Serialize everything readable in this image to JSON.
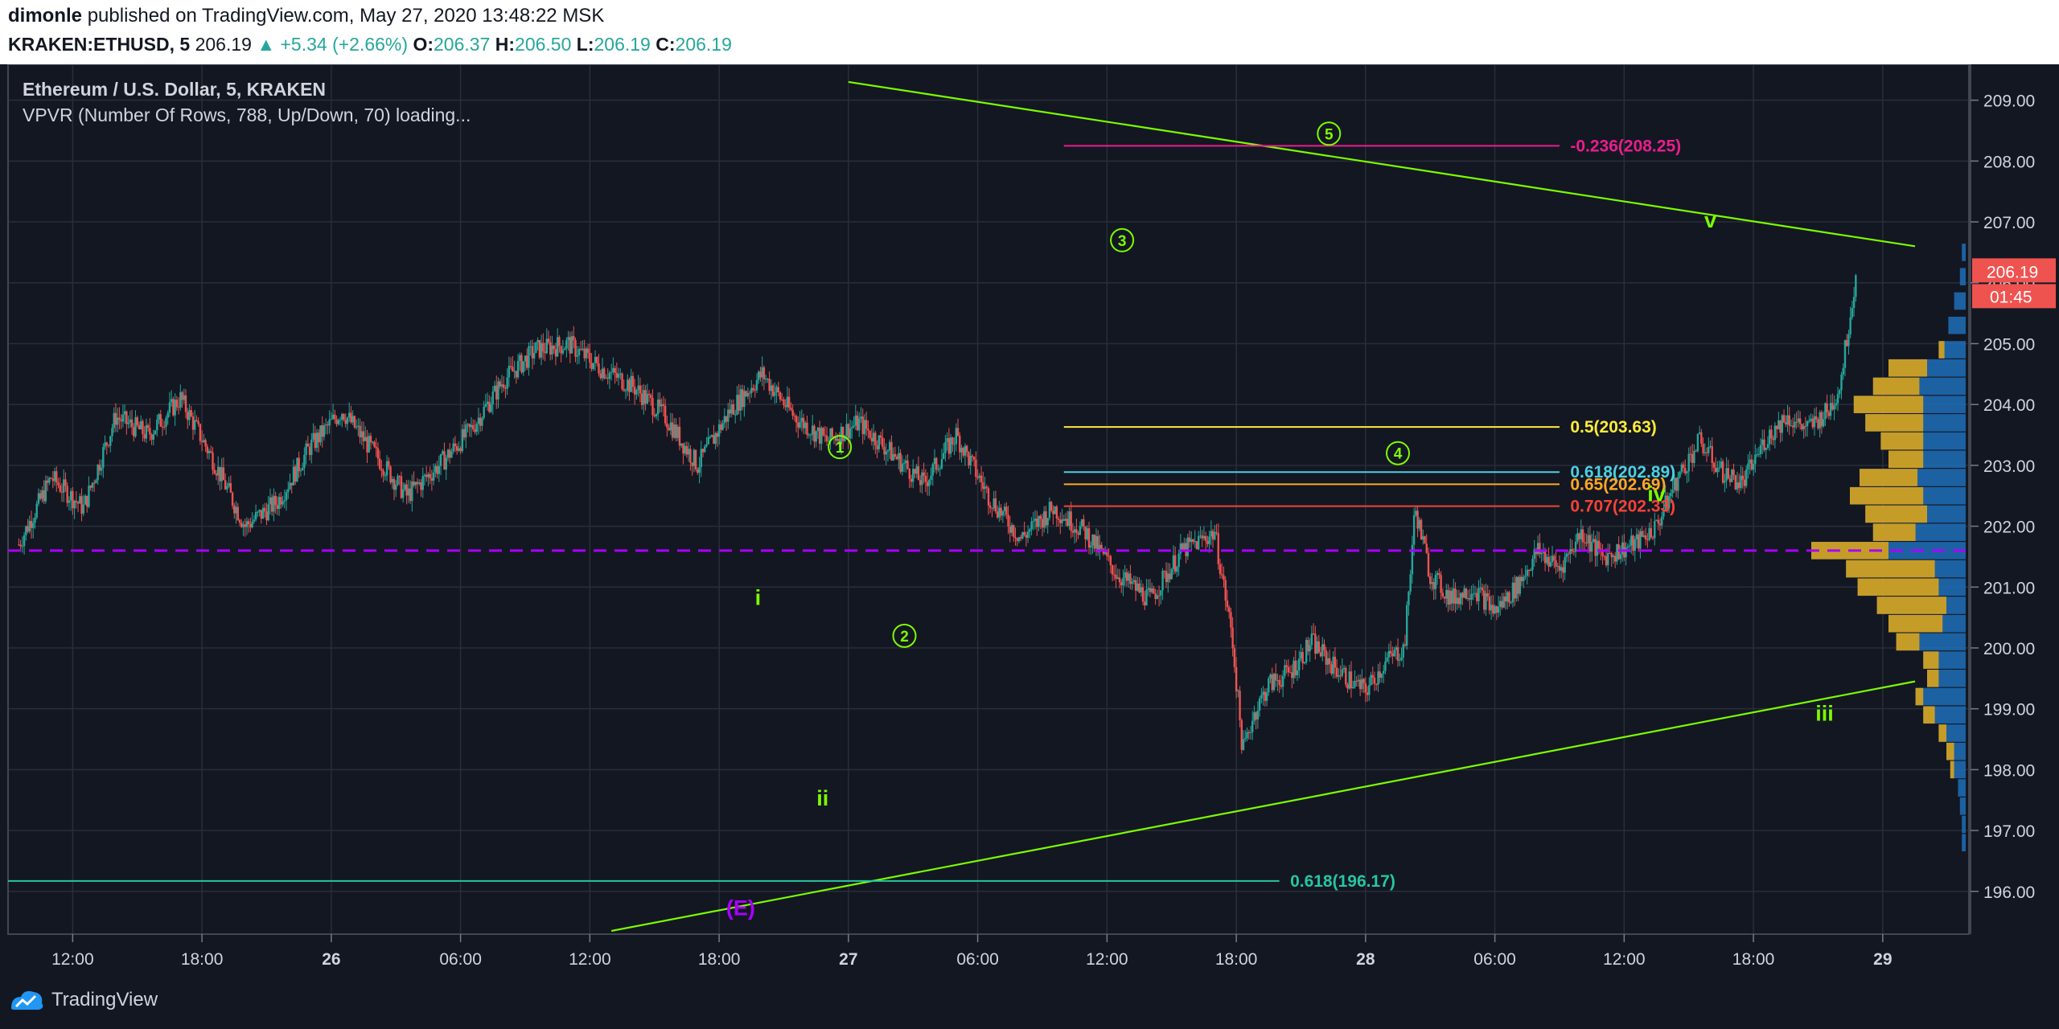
{
  "header": {
    "publisher": "dimonle",
    "published_text": "published on TradingView.com, May 27, 2020 13:48:22 MSK",
    "symbol": "KRAKEN:ETHUSD, 5",
    "last": "206.19",
    "change": "▲ +5.34 (+2.66%)",
    "o_label": "O:",
    "o": "206.37",
    "h_label": "H:",
    "h": "206.50",
    "l_label": "L:",
    "l": "206.19",
    "c_label": "C:",
    "c": "206.19"
  },
  "legend": {
    "title": "Ethereum / U.S. Dollar, 5, KRAKEN",
    "indicator": "VPVR (Number Of Rows, 788, Up/Down, 70) loading..."
  },
  "footer": {
    "brand": "TradingView"
  },
  "colors": {
    "background": "#131722",
    "grid": "#2a2e39",
    "up": "#26a69a",
    "down": "#ef5350",
    "wave": "#7cfc00",
    "purple": "#aa00ff",
    "pink": "#e91e8c",
    "yellow": "#ffeb3b",
    "cyan": "#4dd0e1",
    "orange": "#ffa726",
    "red": "#f44336",
    "teal": "#26c6a1",
    "vp_up": "#1e6fb8",
    "vp_down": "#d9a31c"
  },
  "chart_data": {
    "type": "candlestick",
    "x_ticks": [
      "12:00",
      "18:00",
      "26",
      "06:00",
      "12:00",
      "18:00",
      "27",
      "06:00",
      "12:00",
      "18:00",
      "28",
      "06:00",
      "12:00",
      "18:00",
      "29"
    ],
    "y_ticks": [
      "196.00",
      "197.00",
      "198.00",
      "199.00",
      "200.00",
      "201.00",
      "202.00",
      "203.00",
      "204.00",
      "205.00",
      "206.00",
      "207.00",
      "208.00",
      "209.00"
    ],
    "ylim": [
      195.35,
      209.55
    ],
    "xlim_hours": [
      -39,
      52
    ],
    "last_price_badge": "206.19",
    "countdown_badge": "01:45",
    "price_path": [
      [
        -38.5,
        201.7
      ],
      [
        -37,
        202.8
      ],
      [
        -35.5,
        202.3
      ],
      [
        -34,
        203.8
      ],
      [
        -32.5,
        203.5
      ],
      [
        -31,
        204.1
      ],
      [
        -29.5,
        203.1
      ],
      [
        -28,
        202.0
      ],
      [
        -26.5,
        202.4
      ],
      [
        -25,
        203.3
      ],
      [
        -23.5,
        203.9
      ],
      [
        -22,
        203.2
      ],
      [
        -20.5,
        202.5
      ],
      [
        -19,
        203.0
      ],
      [
        -17.5,
        203.6
      ],
      [
        -16,
        204.4
      ],
      [
        -14.5,
        204.9
      ],
      [
        -13,
        205.0
      ],
      [
        -11.5,
        204.6
      ],
      [
        -10,
        204.3
      ],
      [
        -8.5,
        203.8
      ],
      [
        -7,
        203.0
      ],
      [
        -5.5,
        203.9
      ],
      [
        -4,
        204.5
      ],
      [
        -2.5,
        203.8
      ],
      [
        -1,
        203.4
      ],
      [
        0.5,
        203.7
      ],
      [
        2,
        203.2
      ],
      [
        3.5,
        202.7
      ],
      [
        5,
        203.5
      ],
      [
        6.5,
        202.5
      ],
      [
        8,
        201.8
      ],
      [
        9.5,
        202.3
      ],
      [
        11,
        201.9
      ],
      [
        12.5,
        201.2
      ],
      [
        14,
        200.8
      ],
      [
        15.5,
        201.6
      ],
      [
        17,
        201.9
      ],
      [
        17.8,
        200.2
      ],
      [
        18.3,
        198.3
      ],
      [
        18.8,
        198.9
      ],
      [
        19.5,
        199.4
      ],
      [
        20.5,
        199.6
      ],
      [
        21.5,
        200.1
      ],
      [
        22.5,
        199.7
      ],
      [
        23.5,
        199.4
      ],
      [
        24,
        199.3
      ],
      [
        25,
        199.8
      ],
      [
        25.8,
        200.0
      ],
      [
        26.3,
        202.3
      ],
      [
        27,
        201.2
      ],
      [
        28,
        200.8
      ],
      [
        29,
        201.0
      ],
      [
        30,
        200.6
      ],
      [
        31,
        201.0
      ],
      [
        32,
        201.6
      ],
      [
        33,
        201.3
      ],
      [
        34,
        201.9
      ],
      [
        35,
        201.5
      ],
      [
        36.5,
        201.7
      ],
      [
        37.5,
        202.0
      ],
      [
        38.5,
        202.8
      ],
      [
        39.5,
        203.4
      ],
      [
        40.5,
        202.9
      ],
      [
        41.5,
        202.7
      ],
      [
        42.5,
        203.4
      ],
      [
        43.5,
        203.8
      ],
      [
        44.5,
        203.6
      ],
      [
        45.5,
        203.9
      ],
      [
        46,
        204.3
      ],
      [
        46.5,
        205.5
      ],
      [
        46.8,
        206.19
      ]
    ],
    "volume_profile_rows": [
      [
        206.5,
        0.02,
        0.0
      ],
      [
        206.1,
        0.03,
        0.0
      ],
      [
        205.7,
        0.06,
        0.0
      ],
      [
        205.3,
        0.09,
        0.0
      ],
      [
        204.9,
        0.14,
        0.03
      ],
      [
        204.6,
        0.4,
        0.2
      ],
      [
        204.3,
        0.48,
        0.24
      ],
      [
        204.0,
        0.58,
        0.36
      ],
      [
        203.7,
        0.52,
        0.3
      ],
      [
        203.4,
        0.44,
        0.22
      ],
      [
        203.1,
        0.4,
        0.18
      ],
      [
        202.8,
        0.55,
        0.3
      ],
      [
        202.5,
        0.6,
        0.38
      ],
      [
        202.2,
        0.52,
        0.32
      ],
      [
        201.9,
        0.48,
        0.22
      ],
      [
        201.6,
        0.8,
        0.4
      ],
      [
        201.3,
        0.62,
        0.46
      ],
      [
        201.0,
        0.56,
        0.42
      ],
      [
        200.7,
        0.46,
        0.36
      ],
      [
        200.4,
        0.4,
        0.28
      ],
      [
        200.1,
        0.36,
        0.12
      ],
      [
        199.8,
        0.22,
        0.08
      ],
      [
        199.5,
        0.2,
        0.06
      ],
      [
        199.2,
        0.26,
        0.04
      ],
      [
        198.9,
        0.22,
        0.06
      ],
      [
        198.6,
        0.14,
        0.04
      ],
      [
        198.3,
        0.1,
        0.04
      ],
      [
        198.0,
        0.08,
        0.02
      ],
      [
        197.7,
        0.04,
        0.0
      ],
      [
        197.4,
        0.03,
        0.0
      ],
      [
        197.1,
        0.02,
        0.0
      ],
      [
        196.8,
        0.02,
        0.0
      ]
    ],
    "fib_levels": [
      {
        "label": "-0.236(208.25)",
        "price": 208.25,
        "x0": 10,
        "x1": 33,
        "label_x": 33.5,
        "color": "pink"
      },
      {
        "label": "0.5(203.63)",
        "price": 203.63,
        "x0": 10,
        "x1": 33,
        "label_x": 33.5,
        "color": "yellow"
      },
      {
        "label": "0.618(202.89)",
        "price": 202.89,
        "x0": 10,
        "x1": 33,
        "label_x": 33.5,
        "color": "cyan"
      },
      {
        "label": "0.65(202.69)",
        "price": 202.69,
        "x0": 10,
        "x1": 33,
        "label_x": 33.5,
        "color": "orange"
      },
      {
        "label": "0.707(202.33)",
        "price": 202.33,
        "x0": 10,
        "x1": 33,
        "label_x": 33.5,
        "color": "red"
      },
      {
        "label": "0.618(196.17)",
        "price": 196.17,
        "x0": -39,
        "x1": 20,
        "label_x": 20.5,
        "color": "teal"
      }
    ],
    "dashed_level": 201.6,
    "trendlines": [
      {
        "from": [
          0,
          209.3
        ],
        "to": [
          49.5,
          206.6
        ]
      },
      {
        "from": [
          -11,
          195.35
        ],
        "to": [
          49.5,
          199.45
        ]
      }
    ],
    "wave_labels": [
      {
        "text": "1",
        "x": -0.4,
        "y": 203.3,
        "circled": true
      },
      {
        "text": "2",
        "x": 2.6,
        "y": 200.2,
        "circled": true
      },
      {
        "text": "3",
        "x": 12.7,
        "y": 206.7,
        "circled": true
      },
      {
        "text": "4",
        "x": 25.5,
        "y": 203.2,
        "circled": true
      },
      {
        "text": "5",
        "x": 22.3,
        "y": 208.45,
        "circled": true
      },
      {
        "text": "i",
        "x": -4.2,
        "y": 200.8,
        "circled": false
      },
      {
        "text": "ii",
        "x": -1.2,
        "y": 197.5,
        "circled": false
      },
      {
        "text": "iii",
        "x": 45.3,
        "y": 198.9,
        "circled": false
      },
      {
        "text": "iv",
        "x": 37.5,
        "y": 202.5,
        "circled": false
      },
      {
        "text": "v",
        "x": 40,
        "y": 207.0,
        "circled": false
      },
      {
        "text": "(E)",
        "x": -5.0,
        "y": 195.7,
        "circled": false,
        "color": "purple"
      }
    ]
  }
}
